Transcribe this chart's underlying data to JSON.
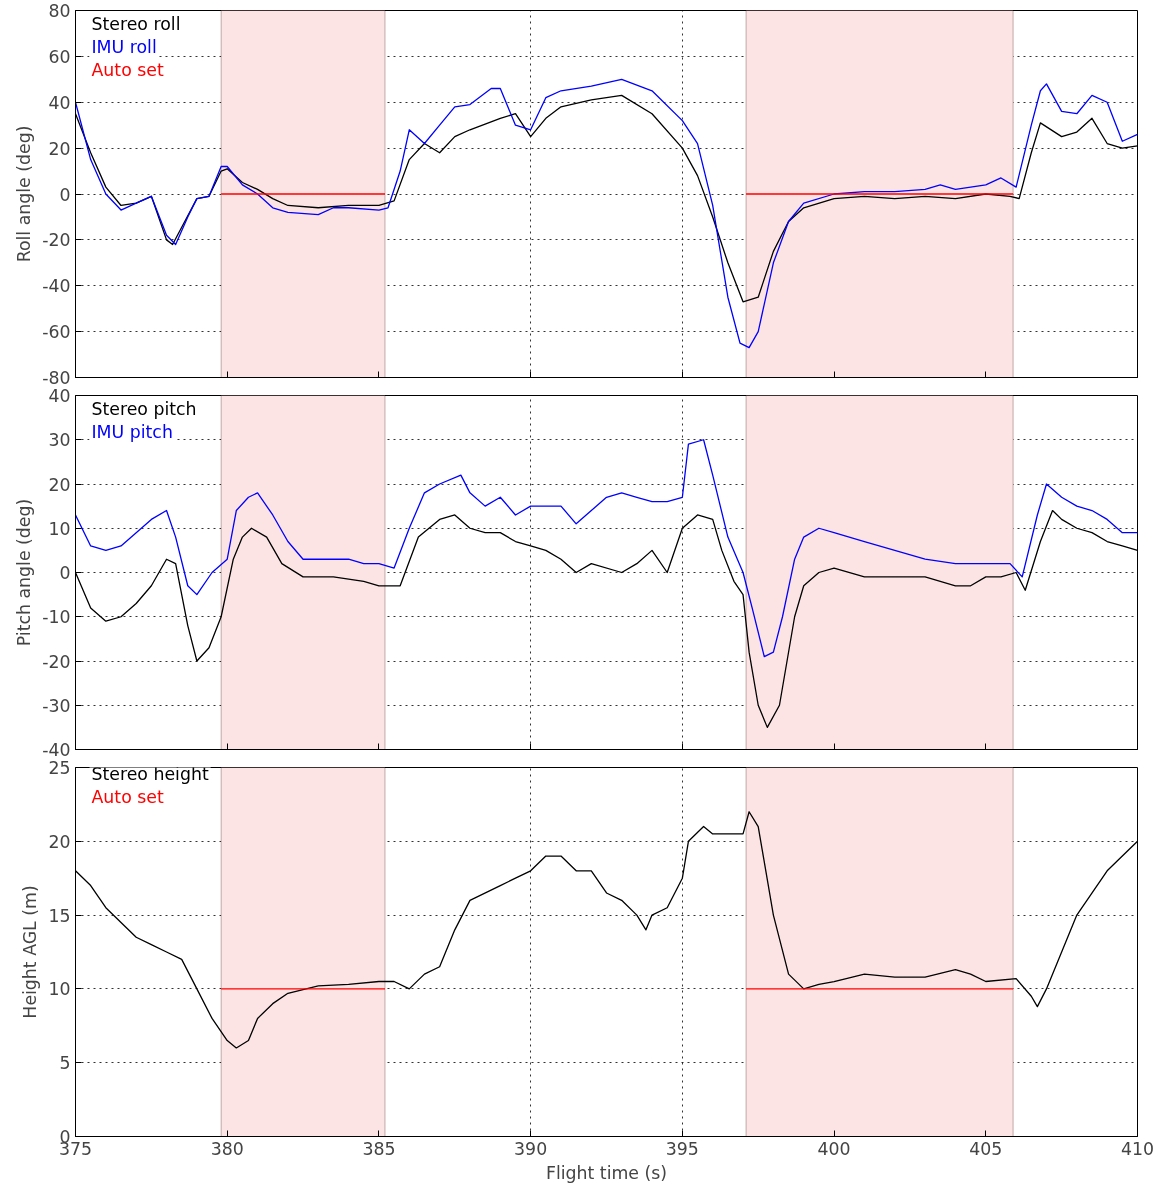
{
  "chart_data": [
    {
      "type": "line",
      "ylabel": "Roll angle (deg)",
      "xlim": [
        375,
        410
      ],
      "ylim": [
        -80,
        80
      ],
      "xticks": [
        375,
        380,
        385,
        390,
        395,
        400,
        405,
        410
      ],
      "yticks": [
        -80,
        -60,
        -40,
        -20,
        0,
        20,
        40,
        60,
        80
      ],
      "grid": true,
      "legend": "top left",
      "tick_labels": "y",
      "line_style": "solid",
      "bands": [
        {
          "axis": "x",
          "from": 379.8,
          "to": 385.2,
          "color": "#fce4e4"
        },
        {
          "axis": "x",
          "from": 397.1,
          "to": 405.9,
          "color": "#fce4e4"
        }
      ],
      "series": [
        {
          "name": "Stereo roll",
          "color": "#000000",
          "x": [
            375,
            375.5,
            376,
            376.5,
            377,
            377.5,
            378,
            378.2,
            378.6,
            379,
            379.4,
            379.8,
            380,
            380.5,
            381,
            381.5,
            382,
            383,
            384,
            385,
            385.5,
            386,
            386.5,
            387,
            387.5,
            388,
            389,
            389.5,
            390,
            390.5,
            391,
            392,
            393,
            394,
            395,
            395.5,
            396,
            396.5,
            397,
            397.5,
            398,
            398.5,
            399,
            400,
            401,
            402,
            403,
            404,
            405,
            405.8,
            406.1,
            406.5,
            406.8,
            407.5,
            408,
            408.5,
            409,
            409.5,
            410
          ],
          "values": [
            35,
            18,
            3,
            -5,
            -4,
            -1,
            -20,
            -22,
            -12,
            -2,
            -1,
            10,
            11,
            5,
            2,
            -2,
            -5,
            -6,
            -5,
            -5,
            -3,
            15,
            22,
            18,
            25,
            28,
            33,
            35,
            25,
            33,
            38,
            41,
            43,
            35,
            20,
            8,
            -10,
            -30,
            -47,
            -45,
            -25,
            -12,
            -6,
            -2,
            -1,
            -2,
            -1,
            -2,
            0,
            -1,
            -2,
            18,
            31,
            25,
            27,
            33,
            22,
            20,
            21
          ]
        },
        {
          "name": "IMU roll",
          "color": "#0000ff",
          "x": [
            375,
            375.5,
            376,
            376.5,
            377,
            377.5,
            378,
            378.3,
            378.7,
            379,
            379.4,
            379.8,
            380,
            380.5,
            381,
            381.5,
            382,
            383,
            383.5,
            384,
            385,
            385.3,
            385.7,
            386,
            386.5,
            387,
            387.5,
            388,
            388.7,
            389,
            389.5,
            390,
            390.5,
            391,
            392,
            393,
            394,
            395,
            395.5,
            396,
            396.5,
            396.9,
            397.2,
            397.5,
            398,
            398.5,
            399,
            400,
            401,
            402,
            403,
            403.5,
            404,
            405,
            405.5,
            406,
            406.5,
            406.8,
            407,
            407.5,
            408,
            408.5,
            409,
            409.5,
            410
          ],
          "values": [
            40,
            15,
            0,
            -7,
            -4,
            -1,
            -18,
            -22,
            -10,
            -2,
            -1,
            12,
            12,
            4,
            0,
            -6,
            -8,
            -9,
            -6,
            -6,
            -7,
            -6,
            10,
            28,
            22,
            30,
            38,
            39,
            46,
            46,
            30,
            28,
            42,
            45,
            47,
            50,
            45,
            32,
            22,
            -5,
            -45,
            -65,
            -67,
            -60,
            -30,
            -12,
            -4,
            0,
            1,
            1,
            2,
            4,
            2,
            4,
            7,
            3,
            30,
            45,
            48,
            36,
            35,
            43,
            40,
            23,
            26
          ]
        },
        {
          "name": "Auto set",
          "color": "#ff0000",
          "x": [
            379.8,
            385.2,
            391,
            397.1,
            405.9
          ],
          "values": [
            0,
            0,
            null,
            0,
            0
          ]
        }
      ]
    },
    {
      "type": "line",
      "ylabel": "Pitch angle (deg)",
      "xlim": [
        375,
        410
      ],
      "ylim": [
        -40,
        40
      ],
      "xticks": [
        375,
        380,
        385,
        390,
        395,
        400,
        405,
        410
      ],
      "yticks": [
        -40,
        -30,
        -20,
        -10,
        0,
        10,
        20,
        30,
        40
      ],
      "grid": true,
      "legend": "top left",
      "tick_labels": "y",
      "line_style": "solid",
      "bands": [
        {
          "axis": "x",
          "from": 379.8,
          "to": 385.2,
          "color": "#fce4e4"
        },
        {
          "axis": "x",
          "from": 397.1,
          "to": 405.9,
          "color": "#fce4e4"
        }
      ],
      "series": [
        {
          "name": "Stereo pitch",
          "color": "#000000",
          "x": [
            375,
            375.5,
            376,
            376.5,
            377,
            377.5,
            378,
            378.3,
            378.7,
            379,
            379.4,
            379.8,
            380.2,
            380.5,
            380.8,
            381.3,
            381.8,
            382.5,
            383.5,
            384.5,
            385,
            385.7,
            386.3,
            387,
            387.5,
            388,
            388.5,
            389,
            389.5,
            390,
            390.5,
            391,
            391.5,
            392,
            393,
            393.5,
            394,
            394.5,
            395,
            395.5,
            396,
            396.3,
            396.7,
            397,
            397.2,
            397.5,
            397.8,
            398.2,
            398.7,
            399,
            399.5,
            400,
            401,
            402,
            403,
            404,
            404.5,
            405,
            405.5,
            406,
            406.3,
            406.8,
            407.2,
            407.5,
            408,
            408.5,
            409,
            409.5,
            410
          ],
          "values": [
            0,
            -8,
            -11,
            -10,
            -7,
            -3,
            3,
            2,
            -12,
            -20,
            -17,
            -10,
            3,
            8,
            10,
            8,
            2,
            -1,
            -1,
            -2,
            -3,
            -3,
            8,
            12,
            13,
            10,
            9,
            9,
            7,
            6,
            5,
            3,
            0,
            2,
            0,
            2,
            5,
            0,
            10,
            13,
            12,
            5,
            -2,
            -5,
            -18,
            -30,
            -35,
            -30,
            -10,
            -3,
            0,
            1,
            -1,
            -1,
            -1,
            -3,
            -3,
            -1,
            -1,
            0,
            -4,
            7,
            14,
            12,
            10,
            9,
            7,
            6,
            5
          ]
        },
        {
          "name": "IMU pitch",
          "color": "#0000ff",
          "x": [
            375,
            375.5,
            376,
            376.5,
            377,
            377.5,
            378,
            378.3,
            378.7,
            379,
            379.5,
            380,
            380.3,
            380.7,
            381,
            381.5,
            382,
            382.5,
            383,
            384,
            384.5,
            385,
            385.5,
            386,
            386.5,
            387,
            387.7,
            388,
            388.5,
            389,
            389.5,
            390,
            391,
            391.5,
            392,
            392.5,
            393,
            393.5,
            394,
            394.5,
            395,
            395.2,
            395.7,
            396,
            396.5,
            397,
            397.3,
            397.7,
            398,
            398.3,
            398.7,
            399,
            399.5,
            400,
            401,
            402,
            403,
            404,
            405,
            405.8,
            406.2,
            406.7,
            407,
            407.5,
            408,
            408.5,
            409,
            409.5,
            410
          ],
          "values": [
            13,
            6,
            5,
            6,
            9,
            12,
            14,
            8,
            -3,
            -5,
            0,
            3,
            14,
            17,
            18,
            13,
            7,
            3,
            3,
            3,
            2,
            2,
            1,
            10,
            18,
            20,
            22,
            18,
            15,
            17,
            13,
            15,
            15,
            11,
            14,
            17,
            18,
            17,
            16,
            16,
            17,
            29,
            30,
            22,
            8,
            0,
            -8,
            -19,
            -18,
            -10,
            3,
            8,
            10,
            9,
            7,
            5,
            3,
            2,
            2,
            2,
            -1,
            13,
            20,
            17,
            15,
            14,
            12,
            9,
            9
          ]
        }
      ]
    },
    {
      "type": "line",
      "xlabel": "Flight time (s)",
      "ylabel": "Height AGL (m)",
      "xlim": [
        375,
        410
      ],
      "ylim": [
        0,
        25
      ],
      "xticks": [
        375,
        380,
        385,
        390,
        395,
        400,
        405,
        410
      ],
      "yticks": [
        0,
        5,
        10,
        15,
        20,
        25
      ],
      "grid": true,
      "legend": "top left",
      "line_style": "solid",
      "bands": [
        {
          "axis": "x",
          "from": 379.8,
          "to": 385.2,
          "color": "#fce4e4"
        },
        {
          "axis": "x",
          "from": 397.1,
          "to": 405.9,
          "color": "#fce4e4"
        }
      ],
      "series": [
        {
          "name": "Stereo height",
          "color": "#000000",
          "x": [
            375,
            375.5,
            376,
            376.5,
            377,
            377.5,
            378,
            378.5,
            379,
            379.5,
            380,
            380.3,
            380.7,
            381,
            381.5,
            382,
            383,
            384,
            385,
            385.5,
            386,
            386.5,
            387,
            387.5,
            388,
            389,
            389.5,
            390,
            390.5,
            391,
            391.5,
            392,
            392.5,
            393,
            393.5,
            393.8,
            394,
            394.5,
            395,
            395.2,
            395.7,
            396,
            397,
            397.2,
            397.5,
            398,
            398.5,
            399,
            399.5,
            400,
            401,
            402,
            403,
            404,
            404.5,
            405,
            406,
            406.5,
            406.7,
            407,
            407.5,
            408,
            409,
            409.5,
            410
          ],
          "values": [
            18,
            17,
            15.5,
            14.5,
            13.5,
            13,
            12.5,
            12,
            10,
            8,
            6.5,
            6,
            6.5,
            8,
            9,
            9.7,
            10.2,
            10.3,
            10.5,
            10.5,
            10,
            11,
            11.5,
            14,
            16,
            17,
            17.5,
            18,
            19,
            19,
            18,
            18,
            16.5,
            16,
            15,
            14,
            15,
            15.5,
            17.5,
            20,
            21,
            20.5,
            20.5,
            22,
            21,
            15,
            11,
            10,
            10.3,
            10.5,
            11,
            10.8,
            10.8,
            11.3,
            11,
            10.5,
            10.7,
            9.5,
            8.8,
            10,
            12.5,
            15,
            18,
            19,
            20
          ]
        },
        {
          "name": "Auto set",
          "color": "#ff0000",
          "x": [
            379.8,
            385.2,
            391,
            397.1,
            405.9
          ],
          "values": [
            10,
            10,
            null,
            10,
            10
          ]
        }
      ]
    }
  ]
}
